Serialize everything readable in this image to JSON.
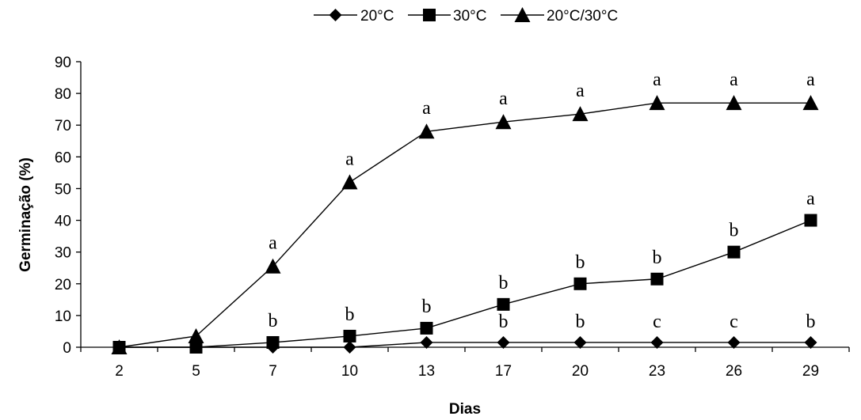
{
  "chart_data": {
    "type": "line",
    "title": "",
    "xlabel": "Dias",
    "ylabel": "Germinação (%)",
    "categories": [
      "2",
      "5",
      "7",
      "10",
      "13",
      "17",
      "20",
      "23",
      "26",
      "29"
    ],
    "ylim": [
      0,
      90
    ],
    "yticks": [
      "0",
      "10",
      "20",
      "30",
      "40",
      "50",
      "60",
      "70",
      "80",
      "90"
    ],
    "grid": false,
    "legend_position": "top-center",
    "series": [
      {
        "name": "20°C",
        "marker": "diamond",
        "values": [
          0,
          0,
          0,
          0,
          1.5,
          1.5,
          1.5,
          1.5,
          1.5,
          1.5
        ],
        "labels": [
          "",
          "",
          "",
          "",
          "",
          "b",
          "b",
          "c",
          "c",
          "b"
        ]
      },
      {
        "name": "30°C",
        "marker": "square",
        "values": [
          0,
          0,
          1.5,
          3.5,
          6,
          13.5,
          20,
          21.5,
          30,
          40
        ],
        "labels": [
          "",
          "",
          "b",
          "b",
          "b",
          "b",
          "b",
          "b",
          "b",
          "a"
        ]
      },
      {
        "name": "20°C/30°C",
        "marker": "triangle",
        "values": [
          0,
          3.5,
          25.5,
          52,
          68,
          71,
          73.5,
          77,
          77,
          77
        ],
        "labels": [
          "",
          "",
          "a",
          "a",
          "a",
          "a",
          "a",
          "a",
          "a",
          "a"
        ]
      }
    ]
  }
}
